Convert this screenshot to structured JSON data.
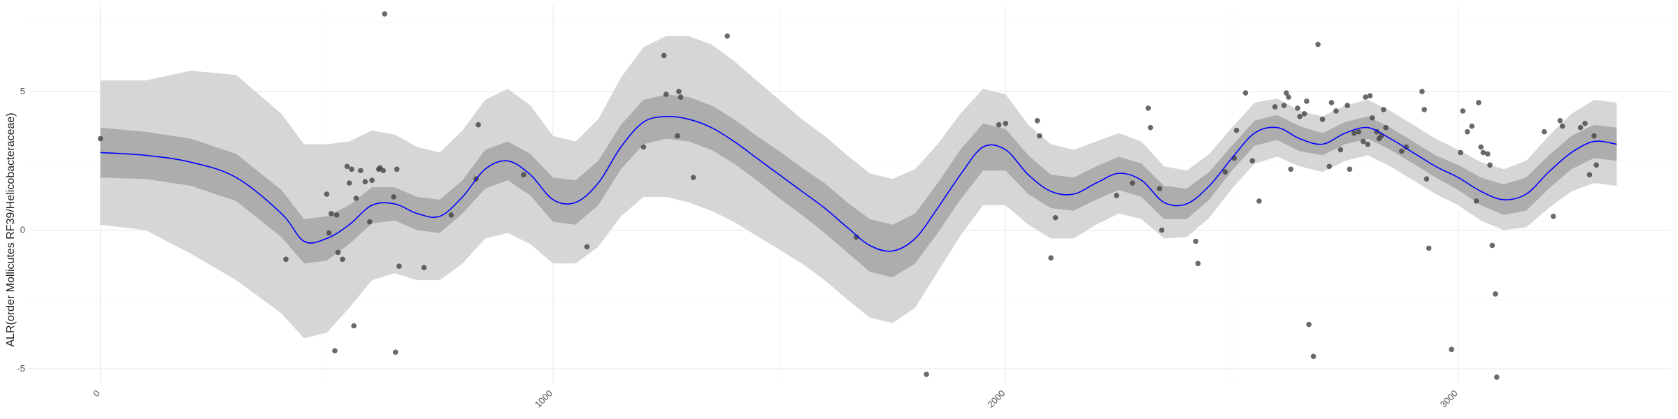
{
  "chart_data": {
    "type": "scatter",
    "title": "",
    "xlabel": "",
    "ylabel": "ALR(order Mollicutes RF39/Helicobacteraceae)",
    "xlim": [
      -160,
      3470
    ],
    "ylim": [
      -5.5,
      8.1
    ],
    "x_ticks": [
      0,
      1000,
      2000,
      3000
    ],
    "x_minor": [
      500,
      1500,
      2500
    ],
    "y_ticks": [
      -5,
      0,
      5
    ],
    "y_minor": [
      -2.5,
      2.5,
      7.5
    ],
    "grid": true,
    "legend": "none",
    "colors": {
      "points": "#404040",
      "trend": "#0000ff",
      "inner_band": "#adadad",
      "outer_band": "#d6d6d6",
      "grid": "#ebebeb"
    },
    "trend": {
      "name": "",
      "x": [
        0,
        100,
        200,
        300,
        400,
        450,
        500,
        550,
        600,
        650,
        700,
        750,
        800,
        850,
        900,
        950,
        1000,
        1050,
        1100,
        1150,
        1200,
        1250,
        1300,
        1350,
        1400,
        1450,
        1500,
        1550,
        1600,
        1650,
        1700,
        1750,
        1800,
        1850,
        1900,
        1950,
        2000,
        2050,
        2100,
        2150,
        2200,
        2250,
        2300,
        2350,
        2400,
        2450,
        2500,
        2550,
        2600,
        2650,
        2700,
        2750,
        2800,
        2850,
        2900,
        2950,
        3000,
        3050,
        3100,
        3150,
        3200,
        3250,
        3300,
        3350
      ],
      "y": [
        2.8,
        2.7,
        2.45,
        1.9,
        0.6,
        -0.4,
        -0.3,
        0.2,
        0.9,
        0.95,
        0.6,
        0.5,
        1.2,
        2.2,
        2.5,
        2.0,
        1.1,
        1.0,
        1.7,
        3.0,
        3.9,
        4.1,
        4.0,
        3.7,
        3.2,
        2.6,
        2.0,
        1.4,
        0.8,
        0.1,
        -0.55,
        -0.75,
        -0.3,
        0.8,
        2.0,
        3.0,
        2.9,
        2.0,
        1.4,
        1.3,
        1.7,
        2.05,
        1.8,
        1.0,
        0.95,
        1.6,
        2.6,
        3.5,
        3.7,
        3.3,
        3.1,
        3.5,
        3.7,
        3.3,
        2.8,
        2.3,
        1.9,
        1.4,
        1.1,
        1.3,
        2.1,
        2.8,
        3.2,
        3.1
      ],
      "inner_halfwidth": [
        0.9,
        0.85,
        0.85,
        0.85,
        0.85,
        0.8,
        0.8,
        0.7,
        0.65,
        0.6,
        0.6,
        0.6,
        0.6,
        0.7,
        0.7,
        0.75,
        0.8,
        0.8,
        0.8,
        0.8,
        0.8,
        0.8,
        0.8,
        0.8,
        0.8,
        0.8,
        0.85,
        0.85,
        0.9,
        0.9,
        0.95,
        0.95,
        0.9,
        0.9,
        0.9,
        0.85,
        0.75,
        0.7,
        0.6,
        0.6,
        0.6,
        0.6,
        0.6,
        0.6,
        0.55,
        0.5,
        0.45,
        0.45,
        0.45,
        0.45,
        0.4,
        0.4,
        0.4,
        0.4,
        0.4,
        0.4,
        0.45,
        0.5,
        0.55,
        0.6,
        0.6,
        0.6,
        0.6,
        0.6
      ],
      "outer_halfwidth": [
        2.6,
        2.7,
        3.3,
        3.7,
        3.6,
        3.5,
        3.4,
        3.0,
        2.7,
        2.5,
        2.4,
        2.3,
        2.4,
        2.5,
        2.6,
        2.5,
        2.3,
        2.2,
        2.3,
        2.5,
        2.7,
        2.9,
        3.0,
        3.0,
        2.9,
        2.8,
        2.7,
        2.6,
        2.6,
        2.6,
        2.6,
        2.6,
        2.5,
        2.3,
        2.2,
        2.1,
        2.0,
        1.8,
        1.7,
        1.6,
        1.5,
        1.45,
        1.4,
        1.3,
        1.2,
        1.15,
        1.1,
        1.1,
        1.05,
        1.0,
        1.0,
        1.0,
        1.0,
        1.0,
        1.0,
        1.0,
        1.0,
        1.05,
        1.1,
        1.2,
        1.3,
        1.4,
        1.5,
        1.5
      ]
    },
    "points": [
      {
        "x": 0,
        "y": 3.3
      },
      {
        "x": 410,
        "y": -1.05
      },
      {
        "x": 500,
        "y": 1.3
      },
      {
        "x": 505,
        "y": -0.1
      },
      {
        "x": 510,
        "y": 0.6
      },
      {
        "x": 518,
        "y": -4.35
      },
      {
        "x": 522,
        "y": 0.55
      },
      {
        "x": 525,
        "y": -0.8
      },
      {
        "x": 535,
        "y": -1.05
      },
      {
        "x": 545,
        "y": 2.3
      },
      {
        "x": 550,
        "y": 1.7
      },
      {
        "x": 555,
        "y": 2.2
      },
      {
        "x": 560,
        "y": -3.45
      },
      {
        "x": 565,
        "y": 1.15
      },
      {
        "x": 575,
        "y": 2.15
      },
      {
        "x": 585,
        "y": 1.75
      },
      {
        "x": 595,
        "y": 0.3
      },
      {
        "x": 600,
        "y": 1.8
      },
      {
        "x": 615,
        "y": 2.2
      },
      {
        "x": 618,
        "y": 2.25
      },
      {
        "x": 625,
        "y": 2.15
      },
      {
        "x": 628,
        "y": 7.8
      },
      {
        "x": 648,
        "y": 1.2
      },
      {
        "x": 652,
        "y": -4.4
      },
      {
        "x": 655,
        "y": 2.2
      },
      {
        "x": 660,
        "y": -1.3
      },
      {
        "x": 715,
        "y": -1.35
      },
      {
        "x": 775,
        "y": 0.55
      },
      {
        "x": 830,
        "y": 1.85
      },
      {
        "x": 835,
        "y": 3.8
      },
      {
        "x": 935,
        "y": 2.0
      },
      {
        "x": 1075,
        "y": -0.6
      },
      {
        "x": 1200,
        "y": 3.0
      },
      {
        "x": 1245,
        "y": 6.3
      },
      {
        "x": 1250,
        "y": 4.9
      },
      {
        "x": 1275,
        "y": 3.4
      },
      {
        "x": 1278,
        "y": 5.0
      },
      {
        "x": 1282,
        "y": 4.8
      },
      {
        "x": 1310,
        "y": 1.9
      },
      {
        "x": 1385,
        "y": 7.0
      },
      {
        "x": 1670,
        "y": -0.25
      },
      {
        "x": 1825,
        "y": -5.2
      },
      {
        "x": 1985,
        "y": 3.8
      },
      {
        "x": 2000,
        "y": 3.85
      },
      {
        "x": 2070,
        "y": 3.95
      },
      {
        "x": 2075,
        "y": 3.4
      },
      {
        "x": 2100,
        "y": -1.0
      },
      {
        "x": 2110,
        "y": 0.45
      },
      {
        "x": 2245,
        "y": 1.25
      },
      {
        "x": 2280,
        "y": 1.7
      },
      {
        "x": 2315,
        "y": 4.4
      },
      {
        "x": 2320,
        "y": 3.7
      },
      {
        "x": 2340,
        "y": 1.5
      },
      {
        "x": 2345,
        "y": 0.0
      },
      {
        "x": 2420,
        "y": -0.4
      },
      {
        "x": 2425,
        "y": -1.2
      },
      {
        "x": 2485,
        "y": 2.1
      },
      {
        "x": 2505,
        "y": 2.6
      },
      {
        "x": 2510,
        "y": 3.6
      },
      {
        "x": 2530,
        "y": 4.95
      },
      {
        "x": 2545,
        "y": 2.5
      },
      {
        "x": 2560,
        "y": 1.05
      },
      {
        "x": 2595,
        "y": 4.45
      },
      {
        "x": 2615,
        "y": 4.5
      },
      {
        "x": 2620,
        "y": 4.95
      },
      {
        "x": 2625,
        "y": 4.8
      },
      {
        "x": 2630,
        "y": 2.2
      },
      {
        "x": 2645,
        "y": 4.4
      },
      {
        "x": 2650,
        "y": 4.1
      },
      {
        "x": 2660,
        "y": 4.2
      },
      {
        "x": 2665,
        "y": 4.65
      },
      {
        "x": 2670,
        "y": -3.4
      },
      {
        "x": 2680,
        "y": -4.55
      },
      {
        "x": 2690,
        "y": 6.7
      },
      {
        "x": 2700,
        "y": 4.0
      },
      {
        "x": 2715,
        "y": 2.3
      },
      {
        "x": 2720,
        "y": 4.6
      },
      {
        "x": 2730,
        "y": 4.3
      },
      {
        "x": 2740,
        "y": 2.9
      },
      {
        "x": 2755,
        "y": 4.5
      },
      {
        "x": 2760,
        "y": 2.2
      },
      {
        "x": 2770,
        "y": 3.5
      },
      {
        "x": 2780,
        "y": 3.55
      },
      {
        "x": 2790,
        "y": 3.2
      },
      {
        "x": 2795,
        "y": 4.8
      },
      {
        "x": 2800,
        "y": 3.1
      },
      {
        "x": 2805,
        "y": 4.85
      },
      {
        "x": 2810,
        "y": 4.05
      },
      {
        "x": 2820,
        "y": 3.55
      },
      {
        "x": 2825,
        "y": 3.3
      },
      {
        "x": 2830,
        "y": 3.4
      },
      {
        "x": 2835,
        "y": 4.35
      },
      {
        "x": 2840,
        "y": 3.7
      },
      {
        "x": 2875,
        "y": 2.85
      },
      {
        "x": 2885,
        "y": 3.0
      },
      {
        "x": 2920,
        "y": 5.0
      },
      {
        "x": 2925,
        "y": 4.35
      },
      {
        "x": 2930,
        "y": 1.85
      },
      {
        "x": 2935,
        "y": -0.65
      },
      {
        "x": 2985,
        "y": -4.3
      },
      {
        "x": 3005,
        "y": 2.8
      },
      {
        "x": 3010,
        "y": 4.3
      },
      {
        "x": 3020,
        "y": 3.55
      },
      {
        "x": 3030,
        "y": 3.75
      },
      {
        "x": 3040,
        "y": 1.05
      },
      {
        "x": 3045,
        "y": 4.6
      },
      {
        "x": 3050,
        "y": 3.0
      },
      {
        "x": 3055,
        "y": 2.8
      },
      {
        "x": 3065,
        "y": 2.75
      },
      {
        "x": 3070,
        "y": 2.35
      },
      {
        "x": 3075,
        "y": -0.55
      },
      {
        "x": 3082,
        "y": -2.3
      },
      {
        "x": 3085,
        "y": -5.3
      },
      {
        "x": 3190,
        "y": 3.55
      },
      {
        "x": 3210,
        "y": 0.5
      },
      {
        "x": 3225,
        "y": 3.95
      },
      {
        "x": 3230,
        "y": 3.75
      },
      {
        "x": 3270,
        "y": 3.7
      },
      {
        "x": 3280,
        "y": 3.85
      },
      {
        "x": 3290,
        "y": 2.0
      },
      {
        "x": 3300,
        "y": 3.4
      },
      {
        "x": 3305,
        "y": 2.35
      }
    ]
  }
}
